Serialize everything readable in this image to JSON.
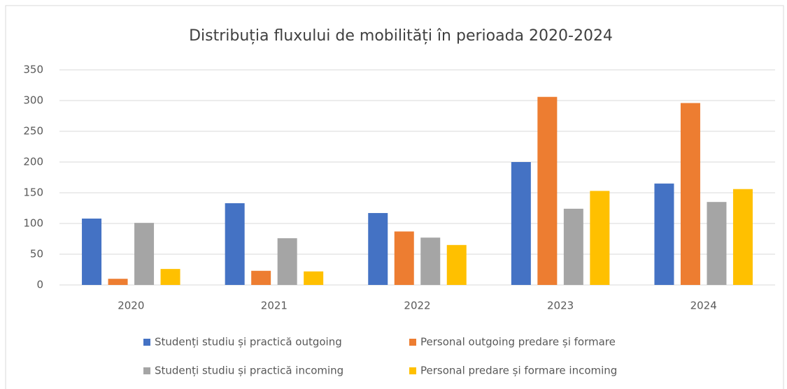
{
  "chart_data": {
    "type": "bar",
    "title": "Distribuția fluxului de mobilități în perioada 2020-2024",
    "categories": [
      "2020",
      "2021",
      "2022",
      "2023",
      "2024"
    ],
    "series": [
      {
        "name": "Studenți studiu și practică outgoing",
        "color": "#4472c4",
        "values": [
          108,
          133,
          117,
          200,
          165
        ]
      },
      {
        "name": "Personal outgoing predare și formare",
        "color": "#ed7d31",
        "values": [
          10,
          23,
          87,
          306,
          296
        ]
      },
      {
        "name": "Studenți studiu și practică incoming",
        "color": "#a5a5a5",
        "values": [
          101,
          76,
          77,
          124,
          135
        ]
      },
      {
        "name": "Personal predare și formare incoming",
        "color": "#ffc000",
        "values": [
          26,
          22,
          65,
          153,
          156
        ]
      }
    ],
    "ylim": [
      0,
      350
    ],
    "yticks": [
      0,
      50,
      100,
      150,
      200,
      250,
      300,
      350
    ],
    "grid": true,
    "legend": "bottom"
  }
}
